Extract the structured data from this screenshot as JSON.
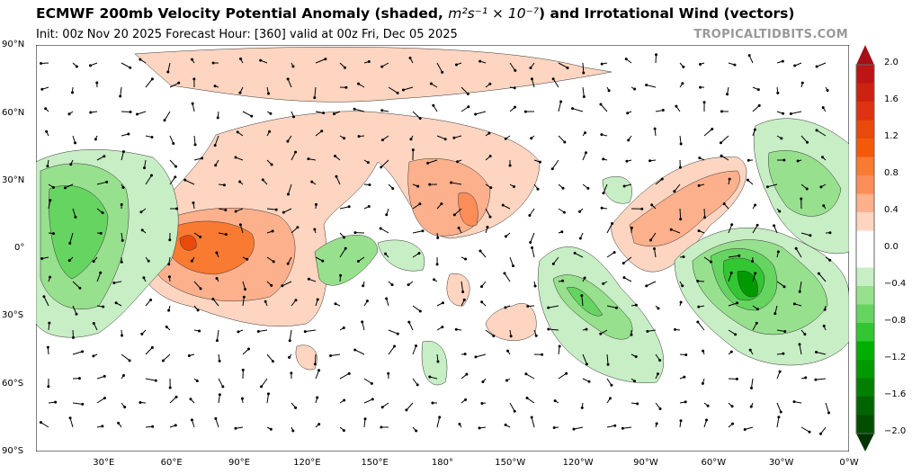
{
  "header": {
    "title_main": "ECMWF 200mb Velocity Potential Anomaly (shaded, ",
    "title_units": "m²s⁻¹ × 10⁻⁷",
    "title_end": ") and Irrotational Wind (vectors)",
    "init": "Init: 00z Nov 20 2025   Forecast Hour: [360]   valid at 00z Fri, Dec 05 2025",
    "brand": "TROPICALTIDBITS.COM"
  },
  "axes": {
    "lat_labels": [
      "90°N",
      "60°N",
      "30°N",
      "0°",
      "30°S",
      "60°S",
      "90°S"
    ],
    "lon_labels": [
      "30°E",
      "60°E",
      "90°E",
      "120°E",
      "150°E",
      "180°",
      "150°W",
      "120°W",
      "90°W",
      "60°W",
      "30°W",
      "0°W"
    ]
  },
  "colorbar": {
    "labels": [
      "2.0",
      "1.6",
      "1.2",
      "0.8",
      "0.4",
      "0.0",
      "−0.4",
      "−0.8",
      "−1.2",
      "−1.6",
      "−2.0"
    ],
    "colors": [
      "#a50f15",
      "#bb1515",
      "#cc2211",
      "#dd3311",
      "#e84a0c",
      "#f25a0a",
      "#f97a31",
      "#fc8d59",
      "#fcb08c",
      "#fdd5c0",
      "#ffffff",
      "#ffffff",
      "#c7eec4",
      "#97e08e",
      "#66d460",
      "#33c633",
      "#00b000",
      "#009900",
      "#007f00",
      "#006400",
      "#004d00",
      "#003300"
    ]
  }
}
